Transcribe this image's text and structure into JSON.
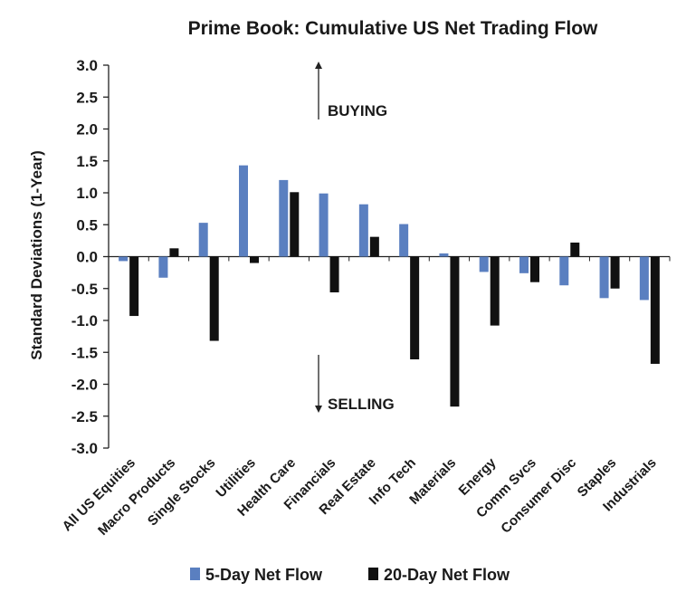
{
  "chart_data": {
    "type": "bar",
    "title": "Prime Book: Cumulative US Net Trading Flow",
    "ylabel": "Standard Deviations (1-Year)",
    "xlabel": "",
    "ylim": [
      -3.0,
      3.0
    ],
    "yticks": [
      "3.0",
      "2.5",
      "2.0",
      "1.5",
      "1.0",
      "0.5",
      "0.0",
      "-0.5",
      "-1.0",
      "-1.5",
      "-2.0",
      "-2.5",
      "-3.0"
    ],
    "ytick_values": [
      3.0,
      2.5,
      2.0,
      1.5,
      1.0,
      0.5,
      0.0,
      -0.5,
      -1.0,
      -1.5,
      -2.0,
      -2.5,
      -3.0
    ],
    "categories": [
      "All US Equities",
      "Macro Products",
      "Single Stocks",
      "Utilities",
      "Health Care",
      "Financials",
      "Real Estate",
      "Info Tech",
      "Materials",
      "Energy",
      "Comm Svcs",
      "Consumer Disc",
      "Staples",
      "Industrials"
    ],
    "series": [
      {
        "name": "5-Day Net Flow",
        "color": "#5a7fc0",
        "values": [
          -0.07,
          -0.33,
          0.53,
          1.43,
          1.2,
          0.99,
          0.82,
          0.51,
          0.05,
          -0.24,
          -0.26,
          -0.45,
          -0.65,
          -0.68
        ]
      },
      {
        "name": "20-Day Net Flow",
        "color": "#111111",
        "values": [
          -0.93,
          0.13,
          -1.32,
          -0.1,
          1.01,
          -0.56,
          0.31,
          -1.61,
          -2.35,
          -1.08,
          -0.4,
          0.22,
          -0.5,
          -1.68
        ]
      }
    ],
    "annotations": [
      {
        "text": "BUYING",
        "direction": "up"
      },
      {
        "text": "SELLING",
        "direction": "down"
      }
    ],
    "legend_position": "bottom",
    "grid": false
  }
}
